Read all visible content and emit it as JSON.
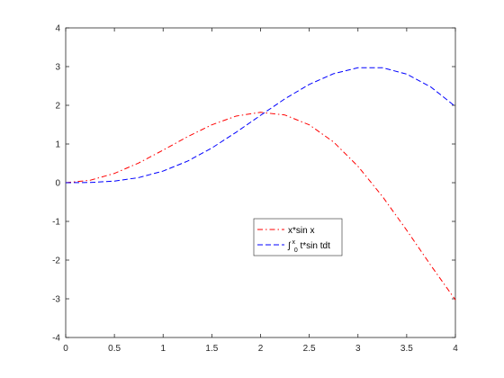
{
  "chart_data": {
    "type": "line",
    "xlim": [
      0,
      4
    ],
    "ylim": [
      -4,
      4
    ],
    "xticks": [
      0,
      0.5,
      1,
      1.5,
      2,
      2.5,
      3,
      3.5,
      4
    ],
    "xtick_labels": [
      "0",
      "0.5",
      "1",
      "1.5",
      "2",
      "2.5",
      "3",
      "3.5",
      "4"
    ],
    "yticks": [
      -4,
      -3,
      -2,
      -1,
      0,
      1,
      2,
      3,
      4
    ],
    "ytick_labels": [
      "-4",
      "-3",
      "-2",
      "-1",
      "0",
      "1",
      "2",
      "3",
      "4"
    ],
    "grid": false,
    "legend_position": "center-right",
    "x": [
      0,
      0.25,
      0.5,
      0.75,
      1,
      1.25,
      1.5,
      1.75,
      2,
      2.25,
      2.5,
      2.75,
      3,
      3.25,
      3.5,
      3.75,
      4
    ],
    "series": [
      {
        "name_main": "x*sin x",
        "color": "#ff0000",
        "style": "dash-dot",
        "values": [
          0,
          0.062,
          0.24,
          0.511,
          0.841,
          1.187,
          1.496,
          1.722,
          1.819,
          1.749,
          1.496,
          1.051,
          0.423,
          -0.352,
          -1.228,
          -2.144,
          -3.027
        ]
      },
      {
        "name_main": "∫",
        "name_sup": "x",
        "name_sub": "0",
        "name_rest": "t*sin tdt",
        "color": "#0000ff",
        "style": "dashed",
        "values": [
          0,
          0.005,
          0.041,
          0.132,
          0.301,
          0.556,
          0.897,
          1.304,
          1.741,
          2.168,
          2.54,
          2.818,
          2.97,
          2.972,
          2.806,
          2.469,
          1.969
        ]
      }
    ]
  }
}
